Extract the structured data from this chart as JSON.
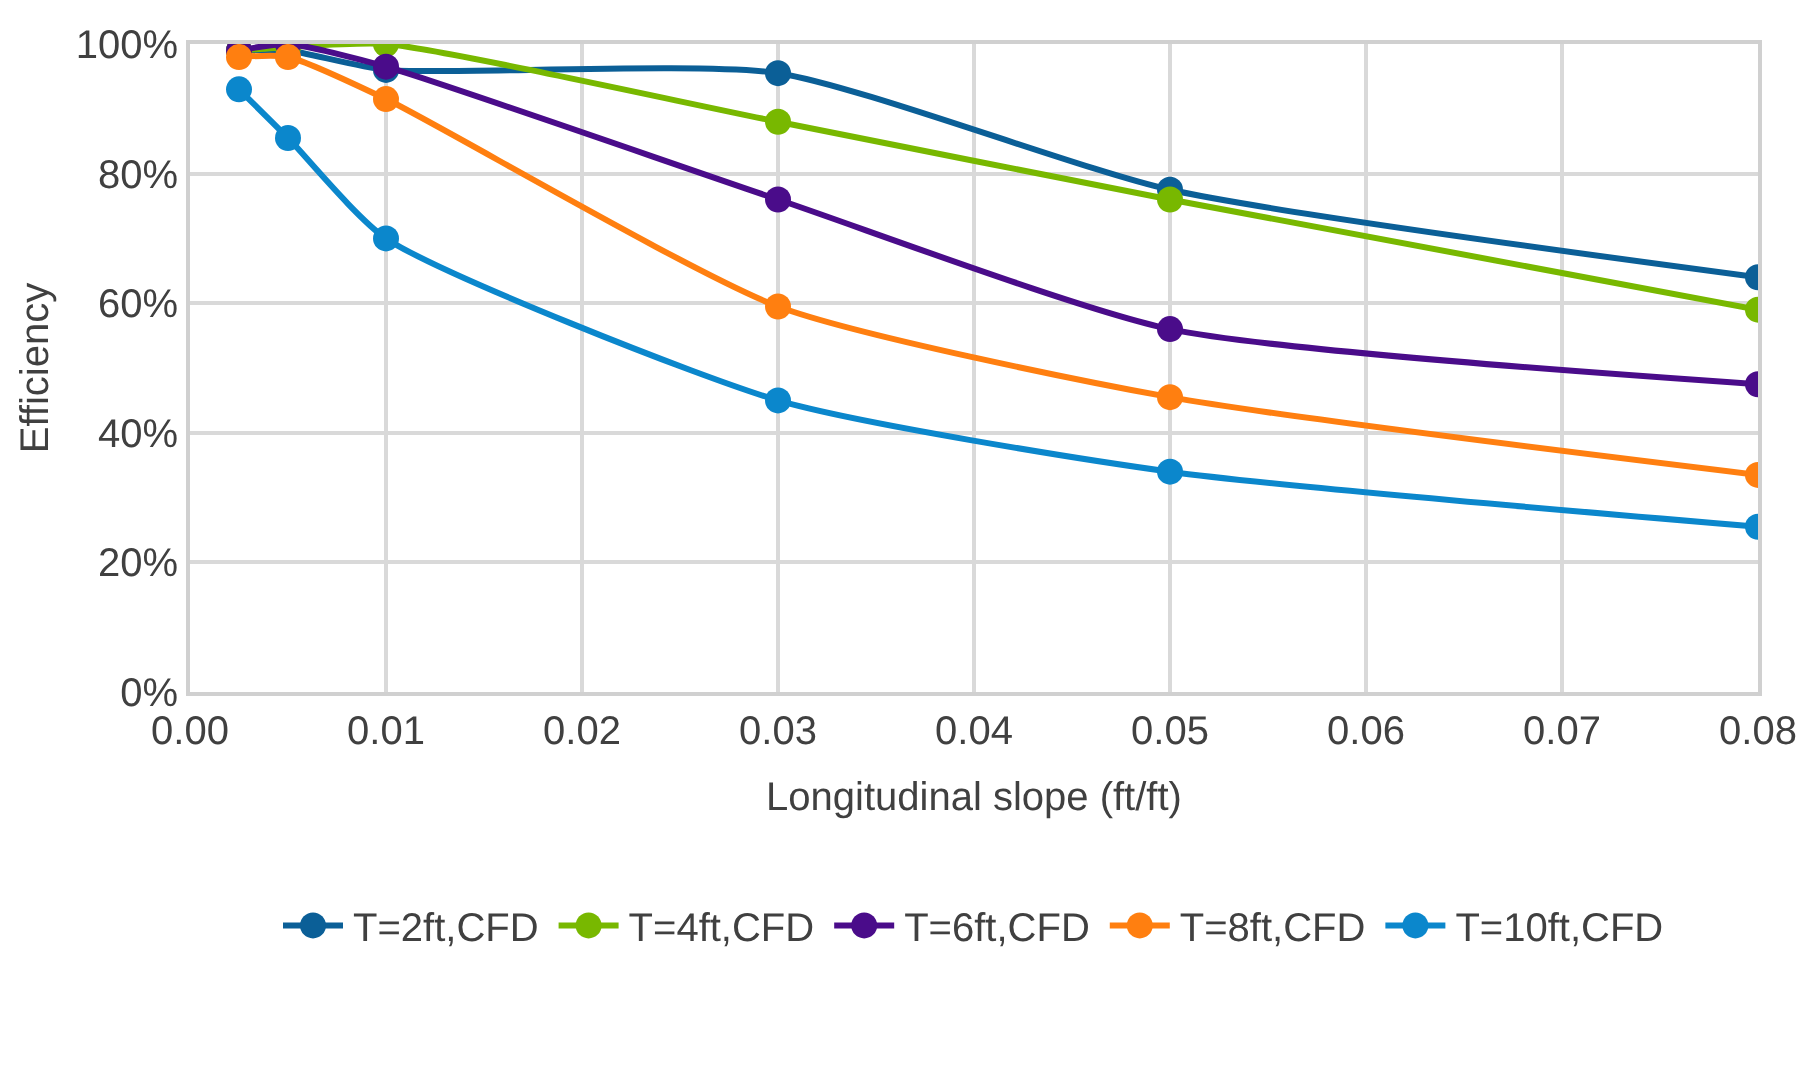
{
  "chart_data": {
    "type": "line",
    "xlabel": "Longitudinal slope (ft/ft)",
    "ylabel": "Efficiency",
    "x": [
      0.0025,
      0.005,
      0.01,
      0.03,
      0.05,
      0.08
    ],
    "series": [
      {
        "name": "T=2ft,CFD",
        "color": "#0b5f97",
        "values": [
          99,
          99,
          96,
          95.5,
          77.5,
          64
        ]
      },
      {
        "name": "T=4ft,CFD",
        "color": "#78b800",
        "values": [
          99,
          99.5,
          100,
          88,
          76,
          59
        ]
      },
      {
        "name": "T=6ft,CFD",
        "color": "#4a0c8a",
        "values": [
          99,
          100,
          96.5,
          76,
          56,
          47.5
        ]
      },
      {
        "name": "T=8ft,CFD",
        "color": "#ff7f10",
        "values": [
          98,
          98,
          91.5,
          59.5,
          45.5,
          33.5
        ]
      },
      {
        "name": "T=10ft,CFD",
        "color": "#0b87cc",
        "values": [
          93,
          85.5,
          70,
          45,
          34,
          25.5
        ]
      }
    ],
    "xlim": [
      0,
      0.08
    ],
    "xticks": [
      {
        "value": 0,
        "label": "0.00"
      },
      0.01,
      0.02,
      0.03,
      0.04,
      0.05,
      0.06,
      0.07,
      0.08
    ],
    "ylim": [
      0,
      100
    ],
    "yticks": [
      {
        "value": 0,
        "label": "0%"
      },
      {
        "value": 20,
        "label": "20%"
      },
      {
        "value": 40,
        "label": "40%"
      },
      {
        "value": 60,
        "label": "60%"
      },
      {
        "value": 80,
        "label": "80%"
      },
      {
        "value": 100,
        "label": "100%"
      }
    ],
    "grid": true,
    "legend": "bottom",
    "marker": "circle",
    "line_style": "solid"
  }
}
